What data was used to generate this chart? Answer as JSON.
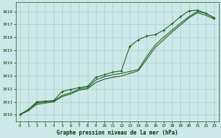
{
  "title": "Graphe pression niveau de la mer (hPa)",
  "background_color": "#cce8e8",
  "grid_color": "#aacccc",
  "line_color": "#1a5c1a",
  "xlim": [
    -0.5,
    23.5
  ],
  "ylim": [
    1009.5,
    1018.7
  ],
  "xticks": [
    0,
    1,
    2,
    3,
    4,
    5,
    6,
    7,
    8,
    9,
    10,
    11,
    12,
    13,
    14,
    15,
    16,
    17,
    18,
    19,
    20,
    21,
    22,
    23
  ],
  "yticks": [
    1010,
    1011,
    1012,
    1013,
    1014,
    1015,
    1016,
    1017,
    1018
  ],
  "line1": [
    1010.0,
    1010.4,
    1011.0,
    1011.05,
    1011.1,
    1011.8,
    1011.95,
    1012.1,
    1012.2,
    1012.9,
    1013.1,
    1013.3,
    1013.4,
    1015.3,
    1015.8,
    1016.1,
    1016.2,
    1016.55,
    1017.05,
    1017.6,
    1018.05,
    1018.1,
    1017.85,
    1017.5
  ],
  "line2": [
    1010.0,
    1010.4,
    1010.9,
    1011.0,
    1011.05,
    1011.5,
    1011.7,
    1012.0,
    1012.1,
    1012.7,
    1012.95,
    1013.1,
    1013.2,
    1013.35,
    1013.5,
    1014.5,
    1015.4,
    1016.0,
    1016.55,
    1017.1,
    1017.6,
    1018.0,
    1017.85,
    1017.5
  ],
  "line3": [
    1010.0,
    1010.3,
    1010.8,
    1010.9,
    1011.0,
    1011.4,
    1011.6,
    1011.9,
    1012.0,
    1012.5,
    1012.75,
    1012.9,
    1013.0,
    1013.2,
    1013.4,
    1014.3,
    1015.2,
    1015.8,
    1016.4,
    1016.95,
    1017.5,
    1017.9,
    1017.7,
    1017.4
  ],
  "tick_fontsize": 4.5,
  "title_fontsize": 5.5
}
